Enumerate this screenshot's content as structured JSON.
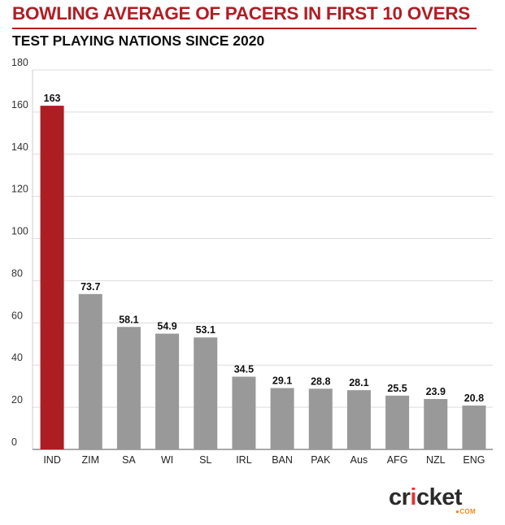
{
  "header": {
    "title": "BOWLING AVERAGE OF PACERS IN FIRST 10 OVERS",
    "subtitle": "TEST PLAYING NATIONS SINCE 2020"
  },
  "chart_data": {
    "type": "bar",
    "categories": [
      "IND",
      "ZIM",
      "SA",
      "WI",
      "SL",
      "IRL",
      "BAN",
      "PAK",
      "Aus",
      "AFG",
      "NZL",
      "ENG"
    ],
    "values": [
      163,
      73.7,
      58.1,
      54.9,
      53.1,
      34.5,
      29.1,
      28.8,
      28.1,
      25.5,
      23.9,
      20.8
    ],
    "value_labels": [
      "163",
      "73.7",
      "58.1",
      "54.9",
      "53.1",
      "34.5",
      "29.1",
      "28.8",
      "28.1",
      "25.5",
      "23.9",
      "20.8"
    ],
    "ylim": [
      0,
      180
    ],
    "yticks": [
      "0",
      "20",
      "40",
      "60",
      "80",
      "100",
      "120",
      "140",
      "160",
      "180"
    ],
    "grid": true,
    "bar_colors": [
      "#ac1e23",
      "#999999",
      "#999999",
      "#999999",
      "#999999",
      "#999999",
      "#999999",
      "#999999",
      "#999999",
      "#999999",
      "#999999",
      "#999999"
    ]
  },
  "brand": {
    "word_start": "cr",
    "word_ball": "i",
    "word_end": "cket",
    "suffix": "●COM",
    "accent": "#e2343a"
  }
}
